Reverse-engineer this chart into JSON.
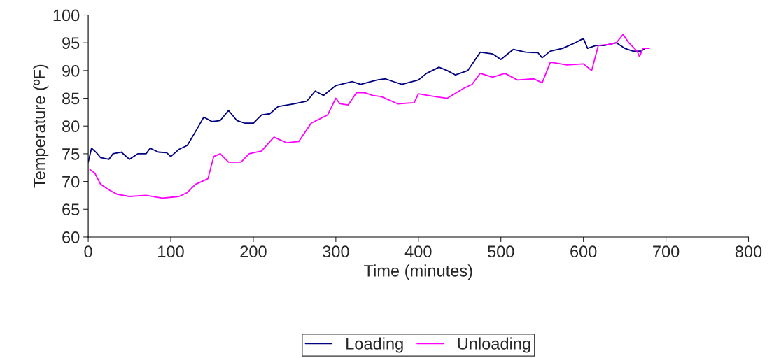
{
  "chart_data": {
    "type": "line",
    "xlabel": "Time (minutes)",
    "ylabel": "Temperature (ºF)",
    "xlim": [
      0,
      800
    ],
    "xticks": [
      0,
      100,
      200,
      300,
      400,
      500,
      600,
      700,
      800
    ],
    "ylim": [
      60,
      100
    ],
    "yticks": [
      60,
      65,
      70,
      75,
      80,
      85,
      90,
      95,
      100
    ],
    "legend": "bottom",
    "grid": false,
    "marker": "none",
    "line_style": "solid",
    "series": [
      {
        "name": "Loading",
        "color": "#000080",
        "x": [
          0,
          4,
          10,
          15,
          25,
          30,
          40,
          50,
          60,
          70,
          75,
          85,
          95,
          100,
          110,
          120,
          130,
          140,
          150,
          160,
          170,
          180,
          190,
          200,
          210,
          220,
          230,
          250,
          265,
          275,
          285,
          300,
          320,
          330,
          350,
          360,
          370,
          380,
          400,
          410,
          425,
          435,
          445,
          460,
          475,
          490,
          500,
          515,
          530,
          545,
          550,
          560,
          575,
          590,
          600,
          605,
          615,
          625,
          640,
          650,
          660,
          670,
          675
        ],
        "values": [
          73.5,
          76,
          75.2,
          74.3,
          74,
          75,
          75.3,
          74,
          75,
          75,
          76,
          75.3,
          75.2,
          74.5,
          75.8,
          76.5,
          79,
          81.6,
          80.8,
          81,
          82.8,
          81,
          80.5,
          80.5,
          82,
          82.2,
          83.5,
          84,
          84.5,
          86.3,
          85.5,
          87.3,
          88,
          87.5,
          88.3,
          88.5,
          88,
          87.5,
          88.3,
          89.5,
          90.6,
          90,
          89.2,
          90,
          93.3,
          93,
          92,
          93.8,
          93.3,
          93.2,
          92.3,
          93.5,
          94,
          95,
          95.8,
          94,
          94.5,
          94.5,
          95,
          94,
          93.5,
          93.5,
          94
        ]
      },
      {
        "name": "Unloading",
        "color": "#ff00ff",
        "x": [
          2,
          8,
          15,
          25,
          35,
          50,
          70,
          90,
          110,
          120,
          130,
          145,
          152,
          160,
          170,
          185,
          195,
          210,
          225,
          240,
          255,
          270,
          290,
          300,
          305,
          315,
          325,
          335,
          345,
          355,
          375,
          395,
          400,
          420,
          435,
          455,
          465,
          475,
          490,
          505,
          520,
          540,
          550,
          560,
          580,
          600,
          610,
          618,
          630,
          640,
          648,
          655,
          665,
          668,
          672,
          680
        ],
        "values": [
          72.2,
          71.5,
          69.5,
          68.5,
          67.7,
          67.3,
          67.5,
          67,
          67.3,
          68,
          69.5,
          70.5,
          74.5,
          75,
          73.5,
          73.5,
          75,
          75.5,
          78,
          77,
          77.2,
          80.5,
          82,
          85,
          84,
          83.8,
          86,
          86,
          85.5,
          85.3,
          84,
          84.2,
          85.8,
          85.3,
          85,
          86.8,
          87.5,
          89.5,
          88.8,
          89.5,
          88.3,
          88.5,
          87.8,
          91.5,
          91,
          91.2,
          90,
          94.5,
          94.7,
          95,
          96.5,
          95,
          93.5,
          92.5,
          94,
          94
        ]
      }
    ]
  }
}
